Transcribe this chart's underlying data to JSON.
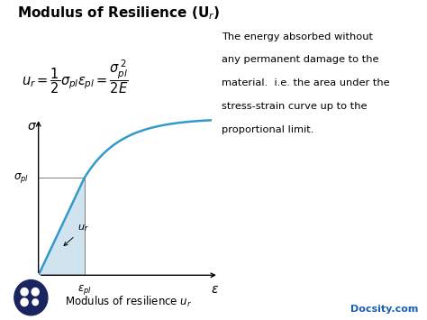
{
  "title": "Modulus of Resilience (U$_r$)",
  "title_fontsize": 11,
  "bg_color": "#ffffff",
  "curve_color": "#3399cc",
  "fill_color": "#c8e0ee",
  "fill_alpha": 0.85,
  "formula": "$u_r = \\dfrac{1}{2}\\sigma_{pl}\\varepsilon_{pl} = \\dfrac{\\sigma_{pl}^{\\,2}}{2E}$",
  "description_lines": [
    "The energy absorbed without",
    "any permanent damage to the",
    "material.  i.e. the area under the",
    "stress-strain curve up to the",
    "proportional limit."
  ],
  "sigma_label": "$\\sigma$",
  "epsilon_label": "$\\epsilon$",
  "sigma_pl_label": "$\\sigma_{pl}$",
  "epsilon_pl_label": "$\\epsilon_{pl}$",
  "ur_label": "$u_r$",
  "bottom_label": "Modulus of resilience $u_r$",
  "docsity_label": "Docsity.com",
  "docsity_color": "#1a5fb4",
  "eps_pl": 0.28,
  "sig_pl": 0.62,
  "A": 0.38,
  "k": 4.5
}
